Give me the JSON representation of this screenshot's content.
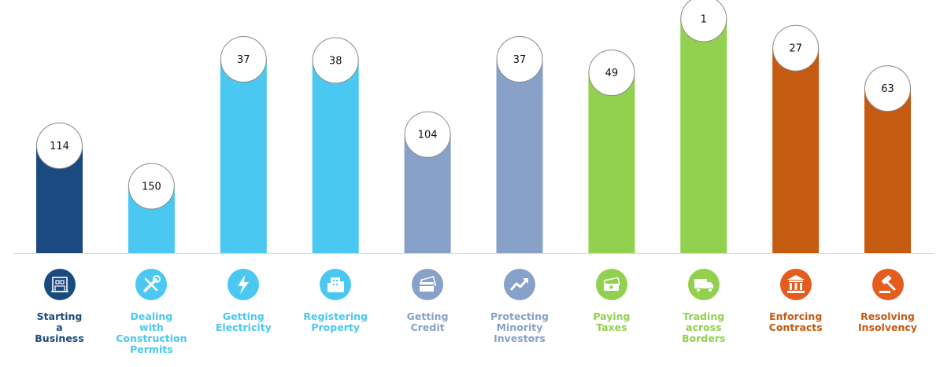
{
  "chart_data": {
    "type": "bar",
    "title": "",
    "xlabel": "",
    "ylabel": "",
    "categories": [
      "Starting\na\nBusiness",
      "Dealing\nwith\nConstruction\nPermits",
      "Getting\nElectricity",
      "Registering\nProperty",
      "Getting\nCredit",
      "Protecting\nMinority\nInvestors",
      "Paying\nTaxes",
      "Trading\nacross\nBorders",
      "Enforcing\nContracts",
      "Resolving\nInsolvency"
    ],
    "values": [
      114,
      150,
      37,
      38,
      104,
      37,
      49,
      1,
      27,
      63
    ],
    "value_labels": [
      "114",
      "150",
      "37",
      "38",
      "104",
      "37",
      "49",
      "1",
      "27",
      "63"
    ],
    "note": "Bar height is inverse to rank (rank 1 = tallest)",
    "colors": [
      "#1b4a80",
      "#4ac8f2",
      "#4ac8f2",
      "#4ac8f2",
      "#87a1c8",
      "#87a1c8",
      "#92d050",
      "#92d050",
      "#c55a11",
      "#c55a11"
    ],
    "icon_colors": [
      "#1b4a80",
      "#4ac8f2",
      "#4ac8f2",
      "#4ac8f2",
      "#87a1c8",
      "#87a1c8",
      "#92d050",
      "#92d050",
      "#e45d1e",
      "#e45d1e"
    ],
    "label_colors": [
      "#1b4a80",
      "#4ac8f2",
      "#4ac8f2",
      "#4ac8f2",
      "#87a1c8",
      "#87a1c8",
      "#92d050",
      "#92d050",
      "#c55a11",
      "#c55a11"
    ],
    "icons": [
      "building-icon",
      "tools-icon",
      "lightning-icon",
      "office-building-icon",
      "credit-card-icon",
      "trend-arrow-icon",
      "money-icon",
      "truck-icon",
      "courthouse-icon",
      "gavel-icon"
    ]
  }
}
